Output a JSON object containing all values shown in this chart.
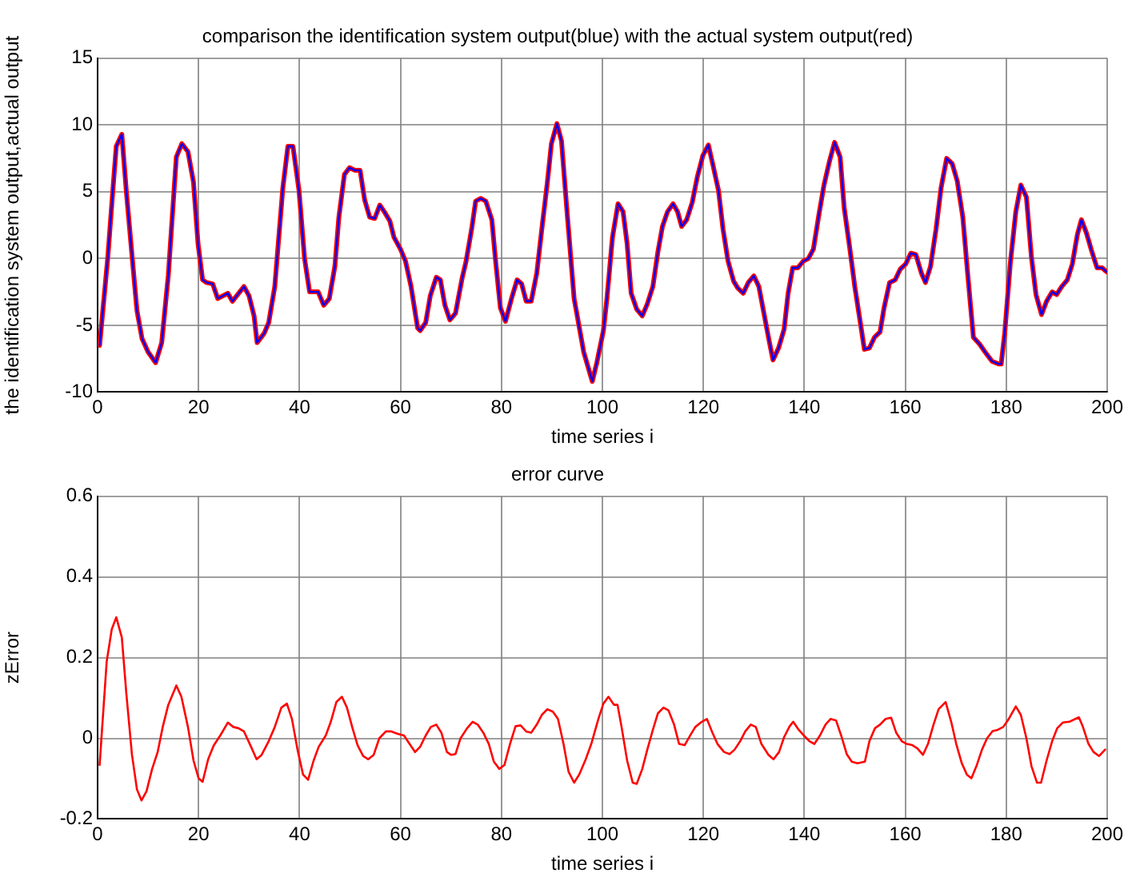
{
  "chart_data": [
    {
      "type": "line",
      "title": "comparison the identification system output(blue) with the actual system output(red)",
      "xlabel": "time series i",
      "ylabel": "the identification system output,actual output",
      "xlim": [
        0,
        200
      ],
      "xticks": [
        0,
        20,
        40,
        60,
        80,
        100,
        120,
        140,
        160,
        180,
        200
      ],
      "ylim": [
        -10,
        15
      ],
      "yticks": [
        -10,
        -5,
        0,
        5,
        10,
        15
      ],
      "grid": true,
      "legend": false,
      "marker": "none",
      "line_style": "solid",
      "series": [
        {
          "color": "#ff0000",
          "x": [
            0.4,
            2,
            3,
            3.7,
            4.8,
            5.7,
            6.8,
            7.8,
            8.8,
            10,
            11.5,
            12.7,
            14,
            15.6,
            16.7,
            17.9,
            19,
            19.9,
            20.8,
            21.6,
            22.8,
            23.8,
            25.8,
            26.7,
            29,
            30,
            31,
            31.6,
            33,
            33.9,
            35.1,
            36.7,
            37.7,
            38.7,
            39.9,
            41,
            42,
            43.7,
            44.8,
            45.9,
            47,
            47.8,
            48.9,
            49.9,
            51,
            52,
            52.9,
            53.9,
            54.9,
            55.9,
            56.8,
            57.9,
            58.7,
            60,
            61,
            62.1,
            63.4,
            63.9,
            65,
            65.9,
            67.1,
            67.9,
            68.8,
            69.8,
            70.9,
            72.2,
            73,
            74.1,
            74.9,
            75.9,
            76.9,
            78.1,
            78.9,
            79.8,
            80.8,
            82,
            83.1,
            84,
            84.9,
            85.9,
            87,
            88,
            89.1,
            89.9,
            91,
            91.9,
            93,
            94.4,
            96.3,
            98,
            98.9,
            100.2,
            100.9,
            102,
            103.1,
            104.1,
            104.9,
            105.7,
            106.8,
            107.9,
            108.9,
            110,
            111,
            111.9,
            112.9,
            114,
            114.9,
            115.7,
            116.7,
            117.8,
            118.8,
            119.9,
            121,
            121.9,
            123,
            123.9,
            124.9,
            126,
            126.8,
            127.9,
            128.9,
            130,
            131,
            131.9,
            133,
            133.8,
            134.9,
            136,
            136.8,
            137.7,
            138.7,
            139.8,
            140.8,
            141.8,
            142.9,
            143.9,
            145,
            146,
            147.1,
            147.9,
            149,
            150,
            151.1,
            151.9,
            152.9,
            153.9,
            155,
            155.8,
            156.9,
            158,
            159,
            160.1,
            161.1,
            162.1,
            163.2,
            164,
            165,
            166.1,
            167.1,
            168.2,
            169.3,
            170.3,
            171.4,
            172.4,
            173.5,
            174.7,
            175.8,
            177.2,
            178.5,
            179,
            179.7,
            180.8,
            181.9,
            182.9,
            184,
            185,
            185.9,
            187,
            188,
            189.1,
            190,
            191,
            192.1,
            193.1,
            194.1,
            194.9,
            195.9,
            196.9,
            198,
            199,
            199.9
          ],
          "values": [
            -6.5,
            0,
            5,
            8.4,
            9.3,
            5,
            0.3,
            -3.9,
            -6,
            -7,
            -7.8,
            -6.3,
            -1.3,
            7.6,
            8.6,
            8,
            5.7,
            1.1,
            -1.6,
            -1.8,
            -1.9,
            -3,
            -2.6,
            -3.2,
            -2.1,
            -2.8,
            -4.3,
            -6.3,
            -5.6,
            -4.8,
            -2.1,
            5.3,
            8.4,
            8.4,
            5.1,
            0,
            -2.5,
            -2.5,
            -3.5,
            -3,
            -0.6,
            3.1,
            6.3,
            6.8,
            6.6,
            6.6,
            4.4,
            3.1,
            3,
            4,
            3.5,
            2.8,
            1.6,
            0.7,
            -0.2,
            -2.1,
            -5.2,
            -5.4,
            -4.8,
            -2.8,
            -1.4,
            -1.6,
            -3.5,
            -4.6,
            -4.1,
            -1.5,
            -0.2,
            2.2,
            4.3,
            4.5,
            4.3,
            2.9,
            -0.4,
            -3.7,
            -4.7,
            -3,
            -1.6,
            -1.9,
            -3.2,
            -3.2,
            -1.1,
            2.2,
            5.7,
            8.6,
            10.1,
            8.8,
            3.5,
            -3,
            -7,
            -9.2,
            -7.8,
            -5.4,
            -3,
            1.6,
            4.1,
            3.5,
            1.1,
            -2.6,
            -3.8,
            -4.3,
            -3.4,
            -2.1,
            0.5,
            2.4,
            3.5,
            4.1,
            3.5,
            2.4,
            2.9,
            4.2,
            6.1,
            7.7,
            8.5,
            7,
            5.1,
            2.2,
            -0.2,
            -1.7,
            -2.2,
            -2.6,
            -1.8,
            -1.3,
            -2.1,
            -3.9,
            -6.1,
            -7.6,
            -6.7,
            -5.3,
            -2.6,
            -0.7,
            -0.7,
            -0.2,
            0,
            0.7,
            3.3,
            5.5,
            7.3,
            8.7,
            7.6,
            3.8,
            0.8,
            -2.1,
            -4.8,
            -6.8,
            -6.7,
            -5.9,
            -5.5,
            -3.7,
            -1.8,
            -1.6,
            -0.8,
            -0.4,
            0.4,
            0.3,
            -1.1,
            -1.8,
            -0.6,
            2.2,
            5.3,
            7.5,
            7.1,
            5.8,
            3.1,
            -1.3,
            -5.9,
            -6.4,
            -7,
            -7.7,
            -7.9,
            -7.9,
            -5.6,
            -0.4,
            3.5,
            5.5,
            4.6,
            0.1,
            -2.7,
            -4.2,
            -3.2,
            -2.5,
            -2.7,
            -2.1,
            -1.6,
            -0.4,
            1.8,
            2.9,
            1.9,
            0.6,
            -0.7,
            -0.7,
            -1
          ]
        },
        {
          "color": "#0000ff",
          "x": [
            0.4,
            2,
            3,
            3.7,
            4.8,
            5.7,
            6.8,
            7.8,
            8.8,
            10,
            11.5,
            12.7,
            14,
            15.6,
            16.7,
            17.9,
            19,
            19.9,
            20.8,
            21.6,
            22.8,
            23.8,
            25.8,
            26.7,
            29,
            30,
            31,
            31.6,
            33,
            33.9,
            35.1,
            36.7,
            37.7,
            38.7,
            39.9,
            41,
            42,
            43.7,
            44.8,
            45.9,
            47,
            47.8,
            48.9,
            49.9,
            51,
            52,
            52.9,
            53.9,
            54.9,
            55.9,
            56.8,
            57.9,
            58.7,
            60,
            61,
            62.1,
            63.4,
            63.9,
            65,
            65.9,
            67.1,
            67.9,
            68.8,
            69.8,
            70.9,
            72.2,
            73,
            74.1,
            74.9,
            75.9,
            76.9,
            78.1,
            78.9,
            79.8,
            80.8,
            82,
            83.1,
            84,
            84.9,
            85.9,
            87,
            88,
            89.1,
            89.9,
            91,
            91.9,
            93,
            94.4,
            96.3,
            98,
            98.9,
            100.2,
            100.9,
            102,
            103.1,
            104.1,
            104.9,
            105.7,
            106.8,
            107.9,
            108.9,
            110,
            111,
            111.9,
            112.9,
            114,
            114.9,
            115.7,
            116.7,
            117.8,
            118.8,
            119.9,
            121,
            121.9,
            123,
            123.9,
            124.9,
            126,
            126.8,
            127.9,
            128.9,
            130,
            131,
            131.9,
            133,
            133.8,
            134.9,
            136,
            136.8,
            137.7,
            138.7,
            139.8,
            140.8,
            141.8,
            142.9,
            143.9,
            145,
            146,
            147.1,
            147.9,
            149,
            150,
            151.1,
            151.9,
            152.9,
            153.9,
            155,
            155.8,
            156.9,
            158,
            159,
            160.1,
            161.1,
            162.1,
            163.2,
            164,
            165,
            166.1,
            167.1,
            168.2,
            169.3,
            170.3,
            171.4,
            172.4,
            173.5,
            174.7,
            175.8,
            177.2,
            178.5,
            179,
            179.7,
            180.8,
            181.9,
            182.9,
            184,
            185,
            185.9,
            187,
            188,
            189.1,
            190,
            191,
            192.1,
            193.1,
            194.1,
            194.9,
            195.9,
            196.9,
            198,
            199,
            199.9
          ],
          "values": [
            -6.5,
            0,
            5,
            8.4,
            9.3,
            5,
            0.3,
            -3.9,
            -6,
            -7,
            -7.8,
            -6.3,
            -1.3,
            7.6,
            8.6,
            8,
            5.7,
            1.1,
            -1.6,
            -1.8,
            -1.9,
            -3,
            -2.6,
            -3.2,
            -2.1,
            -2.8,
            -4.3,
            -6.3,
            -5.6,
            -4.8,
            -2.1,
            5.3,
            8.4,
            8.4,
            5.1,
            0,
            -2.5,
            -2.5,
            -3.5,
            -3,
            -0.6,
            3.1,
            6.3,
            6.8,
            6.6,
            6.6,
            4.4,
            3.1,
            3,
            4,
            3.5,
            2.8,
            1.6,
            0.7,
            -0.2,
            -2.1,
            -5.2,
            -5.4,
            -4.8,
            -2.8,
            -1.4,
            -1.6,
            -3.5,
            -4.6,
            -4.1,
            -1.5,
            -0.2,
            2.2,
            4.3,
            4.5,
            4.3,
            2.9,
            -0.4,
            -3.7,
            -4.7,
            -3,
            -1.6,
            -1.9,
            -3.2,
            -3.2,
            -1.1,
            2.2,
            5.7,
            8.6,
            10.1,
            8.8,
            3.5,
            -3,
            -7,
            -9.2,
            -7.8,
            -5.4,
            -3,
            1.6,
            4.1,
            3.5,
            1.1,
            -2.6,
            -3.8,
            -4.3,
            -3.4,
            -2.1,
            0.5,
            2.4,
            3.5,
            4.1,
            3.5,
            2.4,
            2.9,
            4.2,
            6.1,
            7.7,
            8.5,
            7,
            5.1,
            2.2,
            -0.2,
            -1.7,
            -2.2,
            -2.6,
            -1.8,
            -1.3,
            -2.1,
            -3.9,
            -6.1,
            -7.6,
            -6.7,
            -5.3,
            -2.6,
            -0.7,
            -0.7,
            -0.2,
            0,
            0.7,
            3.3,
            5.5,
            7.3,
            8.7,
            7.6,
            3.8,
            0.8,
            -2.1,
            -4.8,
            -6.8,
            -6.7,
            -5.9,
            -5.5,
            -3.7,
            -1.8,
            -1.6,
            -0.8,
            -0.4,
            0.4,
            0.3,
            -1.1,
            -1.8,
            -0.6,
            2.2,
            5.3,
            7.5,
            7.1,
            5.8,
            3.1,
            -1.3,
            -5.9,
            -6.4,
            -7,
            -7.7,
            -7.9,
            -7.9,
            -5.6,
            -0.4,
            3.5,
            5.5,
            4.6,
            0.1,
            -2.7,
            -4.2,
            -3.2,
            -2.5,
            -2.7,
            -2.1,
            -1.6,
            -0.4,
            1.8,
            2.9,
            1.9,
            0.6,
            -0.7,
            -0.7,
            -1
          ]
        }
      ]
    },
    {
      "type": "line",
      "title": "error curve",
      "xlabel": "time series i",
      "ylabel": "zError",
      "xlim": [
        0,
        200
      ],
      "xticks": [
        0,
        20,
        40,
        60,
        80,
        100,
        120,
        140,
        160,
        180,
        200
      ],
      "ylim": [
        -0.2,
        0.6
      ],
      "yticks": [
        -0.2,
        0,
        0.2,
        0.4,
        0.6
      ],
      "grid": true,
      "legend": false,
      "marker": "none",
      "line_style": "solid",
      "series": [
        {
          "color": "#ff0000",
          "x": [
            0.4,
            1.8,
            2.8,
            3.7,
            4.8,
            5.7,
            6.8,
            7.8,
            8.7,
            9.7,
            10.8,
            11.9,
            12.9,
            14,
            15.6,
            16.6,
            17.9,
            19,
            20,
            20.8,
            21.9,
            23,
            24.3,
            25.8,
            26.9,
            27.9,
            29,
            30.4,
            31.5,
            32.5,
            33.9,
            35.1,
            36.4,
            37.5,
            38.5,
            39.6,
            40.7,
            41.7,
            42.8,
            43.8,
            45.2,
            46.2,
            47.3,
            48.4,
            49.4,
            50.5,
            51.5,
            52.6,
            53.6,
            54.7,
            55.8,
            57.1,
            58.2,
            59.5,
            60.7,
            61.8,
            62.9,
            63.9,
            65,
            66,
            67.1,
            68.1,
            69.2,
            70,
            70.9,
            71.9,
            73.2,
            74.3,
            75.3,
            76.4,
            77.5,
            78.5,
            79.6,
            80.6,
            81.7,
            82.8,
            83.8,
            84.9,
            85.9,
            87,
            88,
            89.1,
            90.2,
            91.2,
            92.3,
            93.3,
            94.4,
            95.4,
            96.7,
            97.8,
            99.2,
            100.2,
            101.2,
            102.3,
            103,
            103.8,
            104.9,
            106,
            106.8,
            107.9,
            108.9,
            110,
            111,
            112.1,
            113.1,
            114.2,
            115.2,
            116.3,
            117.4,
            118.4,
            119.7,
            120.7,
            121.8,
            122.8,
            124.1,
            125.2,
            126.2,
            127.3,
            128.3,
            129.4,
            130.4,
            131.5,
            132.9,
            133.9,
            135,
            136,
            137.1,
            137.8,
            138.9,
            139.9,
            141,
            142,
            143.1,
            144.2,
            145.2,
            146.3,
            147.3,
            148.4,
            149.4,
            150.5,
            152,
            152.9,
            154,
            155,
            156.1,
            157.2,
            158.2,
            159.3,
            160.3,
            161.4,
            162.4,
            163.5,
            164.5,
            165.6,
            166.6,
            168,
            169.1,
            170.1,
            171.2,
            172.2,
            173.1,
            174.1,
            175.2,
            176.2,
            177.3,
            178.3,
            179.4,
            180.4,
            181.9,
            182.9,
            184,
            185,
            186.1,
            186.9,
            188,
            189.1,
            190.1,
            191.2,
            192.5,
            193.7,
            194.4,
            195.2,
            196.3,
            197.3,
            198.4,
            199.6
          ],
          "values": [
            -0.066,
            0.19,
            0.27,
            0.3,
            0.25,
            0.11,
            -0.04,
            -0.127,
            -0.154,
            -0.131,
            -0.076,
            -0.034,
            0.028,
            0.083,
            0.131,
            0.103,
            0.028,
            -0.055,
            -0.099,
            -0.108,
            -0.052,
            -0.018,
            0.007,
            0.039,
            0.028,
            0.025,
            0.017,
            -0.021,
            -0.052,
            -0.041,
            -0.007,
            0.028,
            0.076,
            0.086,
            0.048,
            -0.028,
            -0.09,
            -0.103,
            -0.055,
            -0.021,
            0.007,
            0.041,
            0.09,
            0.103,
            0.076,
            0.025,
            -0.017,
            -0.044,
            -0.052,
            -0.041,
            0,
            0.017,
            0.017,
            0.011,
            0.007,
            -0.014,
            -0.034,
            -0.021,
            0.007,
            0.028,
            0.034,
            0.014,
            -0.034,
            -0.041,
            -0.039,
            0,
            0.025,
            0.041,
            0.034,
            0.014,
            -0.014,
            -0.058,
            -0.076,
            -0.066,
            -0.014,
            0.03,
            0.032,
            0.017,
            0.014,
            0.034,
            0.058,
            0.072,
            0.066,
            0.048,
            -0.014,
            -0.083,
            -0.11,
            -0.09,
            -0.052,
            -0.014,
            0.048,
            0.086,
            0.103,
            0.083,
            0.083,
            0.028,
            -0.055,
            -0.11,
            -0.113,
            -0.076,
            -0.028,
            0.021,
            0.062,
            0.076,
            0.069,
            0.034,
            -0.014,
            -0.017,
            0.007,
            0.028,
            0.041,
            0.048,
            0.014,
            -0.014,
            -0.034,
            -0.039,
            -0.028,
            -0.007,
            0.017,
            0.034,
            0.028,
            -0.014,
            -0.041,
            -0.052,
            -0.034,
            0.003,
            0.03,
            0.041,
            0.021,
            0.007,
            -0.007,
            -0.014,
            0.007,
            0.034,
            0.048,
            0.044,
            0.007,
            -0.039,
            -0.058,
            -0.062,
            -0.058,
            -0.007,
            0.025,
            0.034,
            0.048,
            0.051,
            0.014,
            -0.007,
            -0.014,
            -0.017,
            -0.025,
            -0.041,
            -0.014,
            0.034,
            0.072,
            0.09,
            0.041,
            -0.014,
            -0.062,
            -0.09,
            -0.099,
            -0.069,
            -0.028,
            0,
            0.018,
            0.021,
            0.028,
            0.046,
            0.079,
            0.058,
            0,
            -0.069,
            -0.11,
            -0.11,
            -0.055,
            -0.007,
            0.025,
            0.039,
            0.041,
            0.048,
            0.052,
            0.028,
            -0.014,
            -0.034,
            -0.044,
            -0.028
          ]
        }
      ]
    }
  ]
}
